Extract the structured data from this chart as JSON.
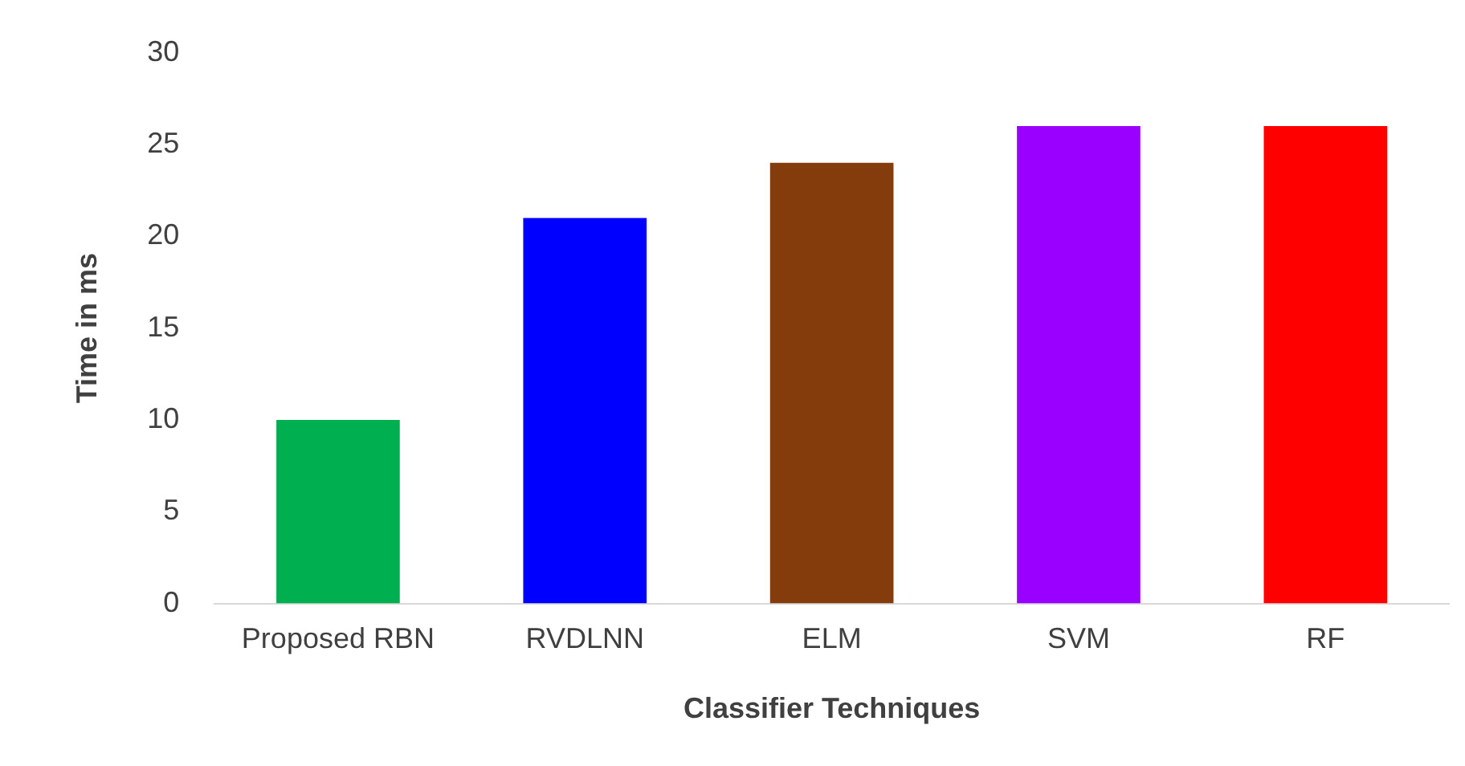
{
  "chart_data": {
    "type": "bar",
    "xlabel": "Classifier Techniques",
    "ylabel": "Time in ms",
    "categories": [
      "Proposed RBN",
      "RVDLNN",
      "ELM",
      "SVM",
      "RF"
    ],
    "values": [
      10,
      21,
      24,
      26,
      26
    ],
    "colors": [
      "#00b050",
      "#0000ff",
      "#843c0c",
      "#9900ff",
      "#ff0000"
    ],
    "ylim": [
      0,
      30
    ],
    "yticks": [
      0,
      5,
      10,
      15,
      20,
      25,
      30
    ],
    "grid": false,
    "legend": false
  }
}
